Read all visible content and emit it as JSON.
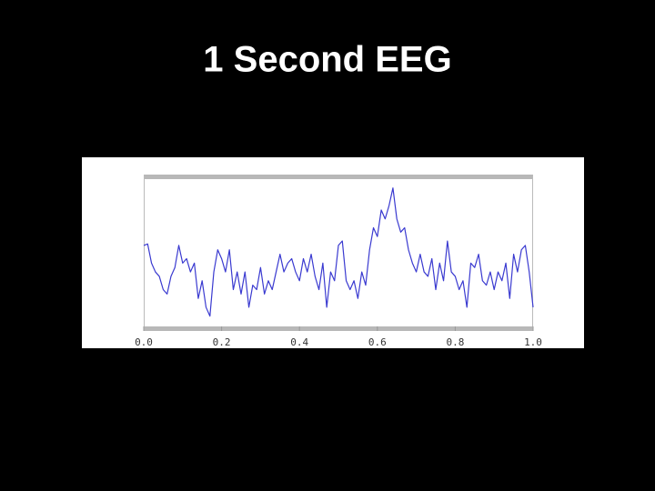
{
  "chart_data": {
    "type": "line",
    "title": "1 Second EEG",
    "x": [
      0,
      0.01,
      0.02,
      0.03,
      0.04,
      0.05,
      0.06,
      0.07,
      0.08,
      0.09,
      0.1,
      0.11,
      0.12,
      0.13,
      0.14,
      0.15,
      0.16,
      0.17,
      0.18,
      0.19,
      0.2,
      0.21,
      0.22,
      0.23,
      0.24,
      0.25,
      0.26,
      0.27,
      0.28,
      0.29,
      0.3,
      0.31,
      0.32,
      0.33,
      0.34,
      0.35,
      0.36,
      0.37,
      0.38,
      0.39,
      0.4,
      0.41,
      0.42,
      0.43,
      0.44,
      0.45,
      0.46,
      0.47,
      0.48,
      0.49,
      0.5,
      0.51,
      0.52,
      0.53,
      0.54,
      0.55,
      0.56,
      0.57,
      0.58,
      0.59,
      0.6,
      0.61,
      0.62,
      0.63,
      0.64,
      0.65,
      0.66,
      0.67,
      0.68,
      0.69,
      0.7,
      0.71,
      0.72,
      0.73,
      0.74,
      0.75,
      0.76,
      0.77,
      0.78,
      0.79,
      0.8,
      0.81,
      0.82,
      0.83,
      0.84,
      0.85,
      0.86,
      0.87,
      0.88,
      0.89,
      0.9,
      0.91,
      0.92,
      0.93,
      0.94,
      0.95,
      0.96,
      0.97,
      0.98,
      0.99,
      1
    ],
    "series": [
      {
        "color": "#3a3ad0",
        "values": [
          55,
          56,
          43,
          37,
          34,
          25,
          22,
          34,
          40,
          55,
          43,
          46,
          37,
          43,
          19,
          31,
          13,
          7,
          37,
          52,
          46,
          37,
          52,
          25,
          37,
          22,
          37,
          13,
          28,
          25,
          40,
          22,
          31,
          25,
          37,
          49,
          37,
          43,
          46,
          37,
          31,
          46,
          37,
          49,
          34,
          25,
          43,
          13,
          37,
          31,
          55,
          58,
          31,
          25,
          31,
          19,
          37,
          28,
          52,
          67,
          61,
          79,
          73,
          82,
          94,
          73,
          64,
          67,
          52,
          43,
          37,
          49,
          37,
          34,
          46,
          25,
          43,
          31,
          58,
          37,
          34,
          25,
          31,
          13,
          43,
          40,
          49,
          31,
          28,
          37,
          25,
          37,
          31,
          43,
          19,
          49,
          37,
          52,
          55,
          37,
          13
        ]
      }
    ],
    "xlim": [
      0,
      1
    ],
    "xticks": [
      {
        "value": 0,
        "label": "0.0"
      },
      0.2,
      0.4,
      0.6,
      0.8,
      {
        "value": 1,
        "label": "1.0"
      }
    ],
    "ylim": [
      0,
      100
    ]
  }
}
